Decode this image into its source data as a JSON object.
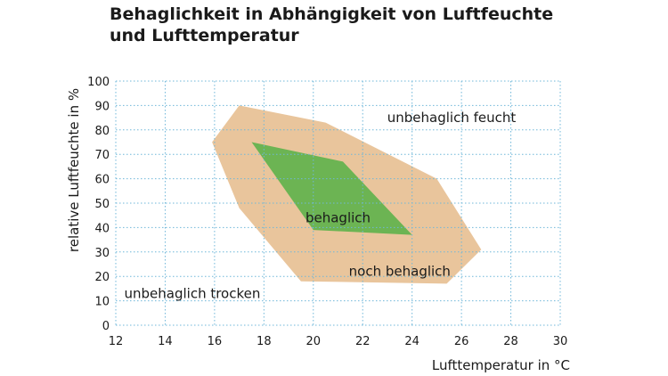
{
  "chart_data": {
    "type": "area",
    "title_lines": [
      "Behaglichkeit in Abhängigkeit von Luftfeuchte",
      "und Lufttemperatur"
    ],
    "xlabel": "Lufttemperatur in °C",
    "ylabel": "relative Luftfeuchte in %",
    "xlim": [
      12,
      30
    ],
    "ylim": [
      0,
      100
    ],
    "x_ticks": [
      12,
      14,
      16,
      18,
      20,
      22,
      24,
      26,
      28,
      30
    ],
    "y_ticks": [
      0,
      10,
      20,
      30,
      40,
      50,
      60,
      70,
      80,
      90,
      100
    ],
    "grid": true,
    "grid_style": "dotted",
    "regions": [
      {
        "label": "noch behaglich",
        "color": "#e9c59c",
        "points": [
          [
            17.0,
            90
          ],
          [
            20.5,
            83
          ],
          [
            25.0,
            60
          ],
          [
            26.8,
            31
          ],
          [
            25.4,
            17
          ],
          [
            19.5,
            18
          ],
          [
            17.0,
            48
          ],
          [
            15.9,
            75
          ]
        ]
      },
      {
        "label": "behaglich",
        "color": "#6cb453",
        "points": [
          [
            17.5,
            75
          ],
          [
            21.2,
            67
          ],
          [
            24.0,
            37
          ],
          [
            20.0,
            39
          ]
        ]
      }
    ],
    "annotations": [
      {
        "text": "unbehaglich feucht",
        "x": 25.6,
        "y": 85
      },
      {
        "text": "behaglich",
        "x": 21.0,
        "y": 44
      },
      {
        "text": "noch behaglich",
        "x": 23.5,
        "y": 22
      },
      {
        "text": "unbehaglich trocken",
        "x": 15.1,
        "y": 13
      }
    ],
    "colors": {
      "grid": "#6fb7d9",
      "text": "#1a1a1a"
    }
  }
}
